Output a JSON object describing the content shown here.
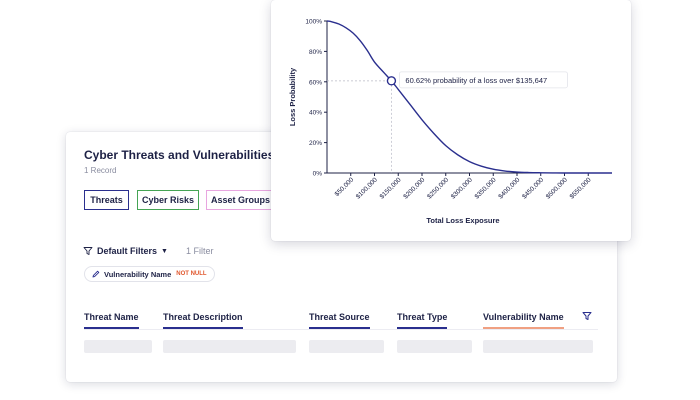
{
  "table_card": {
    "title": "Cyber Threats and Vulnerabilities",
    "record_count": "1 Record",
    "tabs": [
      {
        "label": "Threats",
        "color": "#2a2f8e"
      },
      {
        "label": "Cyber Risks",
        "color": "#45a454"
      },
      {
        "label": "Asset Groups",
        "color": "#e8a6e0"
      }
    ],
    "filters": {
      "label": "Default Filters",
      "count": "1 Filter",
      "icon": "funnel-icon"
    },
    "chip": {
      "field": "Vulnerability Name",
      "condition": "NOT NULL",
      "icon": "pencil-icon"
    },
    "columns": [
      {
        "label": "Threat Name",
        "underline": "#2a2f8e"
      },
      {
        "label": "Threat Description",
        "underline": "#2a2f8e"
      },
      {
        "label": "Threat Source",
        "underline": "#2a2f8e"
      },
      {
        "label": "Threat Type",
        "underline": "#2a2f8e"
      },
      {
        "label": "Vulnerability Name",
        "underline": "#f0a082"
      }
    ]
  },
  "chart_data": {
    "type": "line",
    "title": "",
    "xlabel": "Total Loss Exposure",
    "ylabel": "Loss Probability",
    "xlim": [
      0,
      600000
    ],
    "ylim": [
      0,
      100
    ],
    "x_ticks": [
      50000,
      100000,
      150000,
      200000,
      250000,
      300000,
      350000,
      400000,
      450000,
      500000,
      550000
    ],
    "x_tick_labels": [
      "$50,000",
      "$100,000",
      "$150,000",
      "$200,000",
      "$250,000",
      "$300,000",
      "$350,000",
      "$400,000",
      "$450,000",
      "$500,000",
      "$550,000"
    ],
    "y_ticks": [
      0,
      20,
      40,
      60,
      80,
      100
    ],
    "y_tick_labels": [
      "0%",
      "20%",
      "40%",
      "60%",
      "80%",
      "100%"
    ],
    "series": [
      {
        "color": "#2a2f8e",
        "x": [
          0,
          10000,
          25000,
          40000,
          55000,
          70000,
          85000,
          100000,
          120000,
          135647,
          150000,
          175000,
          200000,
          225000,
          250000,
          275000,
          300000,
          325000,
          350000,
          375000,
          400000,
          425000,
          450000,
          475000,
          500000,
          550000,
          600000
        ],
        "y": [
          100,
          99.5,
          98,
          95.5,
          92,
          87,
          80.5,
          73,
          66,
          60.62,
          55,
          45,
          35,
          26,
          18,
          12,
          7.5,
          4.5,
          2.5,
          1.3,
          0.6,
          0.3,
          0.15,
          0.05,
          0,
          0,
          0
        ]
      }
    ],
    "annotation": {
      "x": 135647,
      "y": 60.62,
      "text": "60.62% probability of a loss over $135,647"
    },
    "grid": false
  }
}
